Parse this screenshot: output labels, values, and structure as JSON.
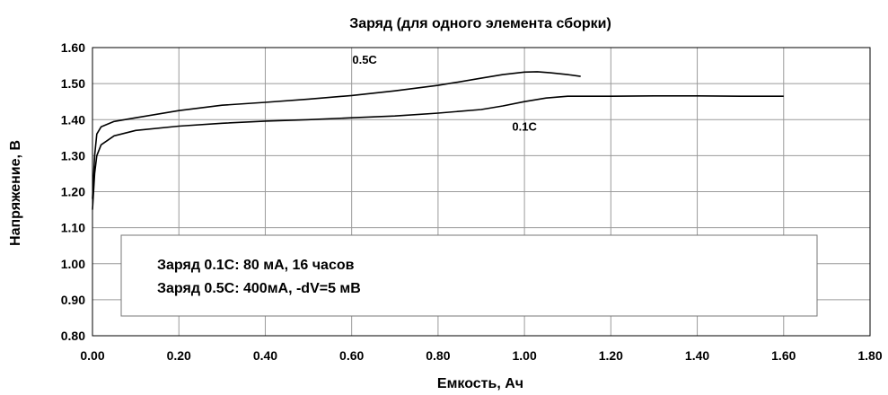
{
  "chart_data": {
    "type": "line",
    "title": "Заряд (для одного элемента сборки)",
    "xlabel": "Емкость, Ач",
    "ylabel": "Напряжение, В",
    "xlim": [
      0,
      1.8
    ],
    "ylim": [
      0.8,
      1.6
    ],
    "xticks": [
      "0.00",
      "0.20",
      "0.40",
      "0.60",
      "0.80",
      "1.00",
      "1.20",
      "1.40",
      "1.60",
      "1.80"
    ],
    "yticks": [
      "0.80",
      "0.90",
      "1.00",
      "1.10",
      "1.20",
      "1.30",
      "1.40",
      "1.50",
      "1.60"
    ],
    "grid": true,
    "series": [
      {
        "name": "0.5C",
        "color": "#000000",
        "x": [
          0.0,
          0.005,
          0.01,
          0.02,
          0.05,
          0.1,
          0.2,
          0.3,
          0.4,
          0.5,
          0.6,
          0.7,
          0.8,
          0.9,
          0.95,
          1.0,
          1.03,
          1.06,
          1.1,
          1.13
        ],
        "y": [
          1.18,
          1.3,
          1.36,
          1.38,
          1.395,
          1.405,
          1.425,
          1.44,
          1.448,
          1.457,
          1.467,
          1.48,
          1.495,
          1.515,
          1.525,
          1.532,
          1.533,
          1.53,
          1.525,
          1.52
        ]
      },
      {
        "name": "0.1C",
        "color": "#000000",
        "x": [
          0.0,
          0.005,
          0.01,
          0.02,
          0.05,
          0.1,
          0.2,
          0.3,
          0.4,
          0.5,
          0.6,
          0.7,
          0.8,
          0.9,
          0.95,
          1.0,
          1.05,
          1.1,
          1.2,
          1.3,
          1.4,
          1.5,
          1.6
        ],
        "y": [
          1.15,
          1.25,
          1.3,
          1.33,
          1.355,
          1.37,
          1.382,
          1.39,
          1.396,
          1.4,
          1.405,
          1.41,
          1.418,
          1.428,
          1.438,
          1.45,
          1.46,
          1.465,
          1.465,
          1.466,
          1.466,
          1.465,
          1.465
        ]
      }
    ],
    "series_label_positions": [
      {
        "name": "0.5C",
        "x": 0.63,
        "y": 1.555
      },
      {
        "name": "0.1C",
        "x": 1.0,
        "y": 1.37
      }
    ],
    "annotation_box": [
      "Заряд 0.1С:  80 мА, 16 часов",
      "Заряд 0.5С:  400мА, -dV=5 мВ"
    ]
  }
}
